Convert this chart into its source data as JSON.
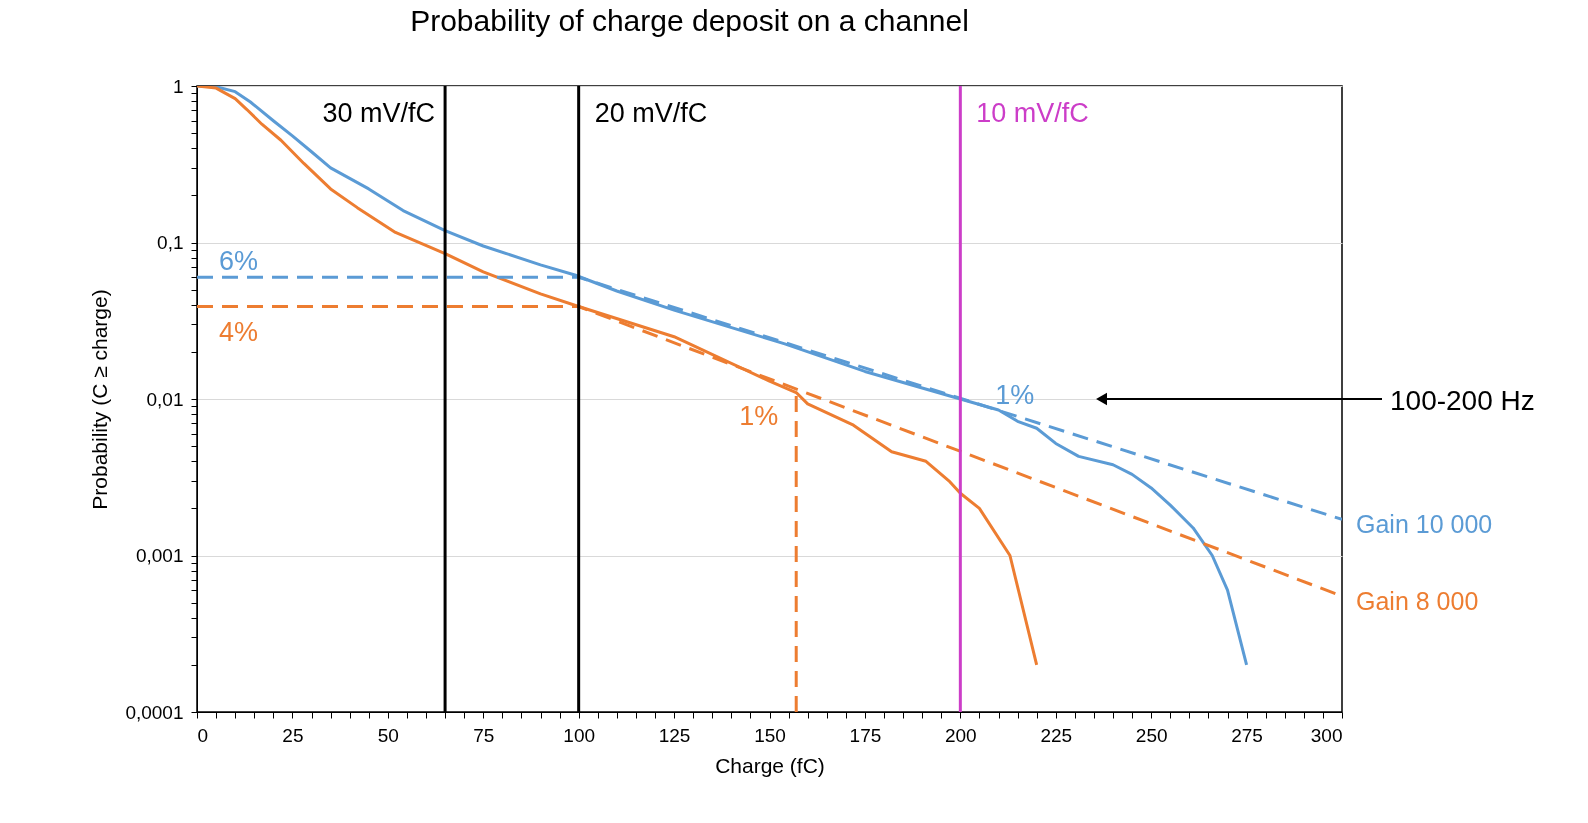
{
  "chart_data": {
    "type": "line",
    "title": "Probability of charge deposit on a channel",
    "xlabel": "Charge (fC)",
    "ylabel": "Probability (C ≥ charge)",
    "log": "y",
    "grid": "y",
    "legend": false,
    "xlim": [
      0,
      300
    ],
    "ylim": [
      0.0001,
      1
    ],
    "xticks": [
      0,
      {
        "value": 5,
        "label": null
      },
      {
        "value": 10,
        "label": null
      },
      {
        "value": 15,
        "label": null
      },
      {
        "value": 20,
        "label": null
      },
      25,
      {
        "value": 30,
        "label": null
      },
      {
        "value": 35,
        "label": null
      },
      {
        "value": 40,
        "label": null
      },
      {
        "value": 45,
        "label": null
      },
      50,
      {
        "value": 55,
        "label": null
      },
      {
        "value": 60,
        "label": null
      },
      {
        "value": 65,
        "label": null
      },
      {
        "value": 70,
        "label": null
      },
      75,
      {
        "value": 80,
        "label": null
      },
      {
        "value": 85,
        "label": null
      },
      {
        "value": 90,
        "label": null
      },
      {
        "value": 95,
        "label": null
      },
      100,
      {
        "value": 105,
        "label": null
      },
      {
        "value": 110,
        "label": null
      },
      {
        "value": 115,
        "label": null
      },
      {
        "value": 120,
        "label": null
      },
      125,
      {
        "value": 130,
        "label": null
      },
      {
        "value": 135,
        "label": null
      },
      {
        "value": 140,
        "label": null
      },
      {
        "value": 145,
        "label": null
      },
      150,
      {
        "value": 155,
        "label": null
      },
      {
        "value": 160,
        "label": null
      },
      {
        "value": 165,
        "label": null
      },
      {
        "value": 170,
        "label": null
      },
      175,
      {
        "value": 180,
        "label": null
      },
      {
        "value": 185,
        "label": null
      },
      {
        "value": 190,
        "label": null
      },
      {
        "value": 195,
        "label": null
      },
      200,
      {
        "value": 205,
        "label": null
      },
      {
        "value": 210,
        "label": null
      },
      {
        "value": 215,
        "label": null
      },
      {
        "value": 220,
        "label": null
      },
      225,
      {
        "value": 230,
        "label": null
      },
      {
        "value": 235,
        "label": null
      },
      {
        "value": 240,
        "label": null
      },
      {
        "value": 245,
        "label": null
      },
      250,
      {
        "value": 255,
        "label": null
      },
      {
        "value": 260,
        "label": null
      },
      {
        "value": 265,
        "label": null
      },
      {
        "value": 270,
        "label": null
      },
      275,
      {
        "value": 280,
        "label": null
      },
      {
        "value": 285,
        "label": null
      },
      {
        "value": 290,
        "label": null
      },
      {
        "value": 295,
        "label": null
      },
      300
    ],
    "yticks": [
      {
        "value": 0.0001,
        "label": "0,0001"
      },
      {
        "value": 0.0002,
        "label": null
      },
      {
        "value": 0.0003,
        "label": null
      },
      {
        "value": 0.0004,
        "label": null
      },
      {
        "value": 0.0005,
        "label": null
      },
      {
        "value": 0.0006,
        "label": null
      },
      {
        "value": 0.0007,
        "label": null
      },
      {
        "value": 0.0008,
        "label": null
      },
      {
        "value": 0.0009,
        "label": null
      },
      {
        "value": 0.001,
        "label": "0,001"
      },
      {
        "value": 0.002,
        "label": null
      },
      {
        "value": 0.003,
        "label": null
      },
      {
        "value": 0.004,
        "label": null
      },
      {
        "value": 0.005,
        "label": null
      },
      {
        "value": 0.006,
        "label": null
      },
      {
        "value": 0.007,
        "label": null
      },
      {
        "value": 0.008,
        "label": null
      },
      {
        "value": 0.009,
        "label": null
      },
      {
        "value": 0.01,
        "label": "0,01"
      },
      {
        "value": 0.02,
        "label": null
      },
      {
        "value": 0.03,
        "label": null
      },
      {
        "value": 0.04,
        "label": null
      },
      {
        "value": 0.05,
        "label": null
      },
      {
        "value": 0.06,
        "label": null
      },
      {
        "value": 0.07,
        "label": null
      },
      {
        "value": 0.08,
        "label": null
      },
      {
        "value": 0.09,
        "label": null
      },
      {
        "value": 0.1,
        "label": "0,1"
      },
      {
        "value": 0.2,
        "label": null
      },
      {
        "value": 0.3,
        "label": null
      },
      {
        "value": 0.4,
        "label": null
      },
      {
        "value": 0.5,
        "label": null
      },
      {
        "value": 0.6,
        "label": null
      },
      {
        "value": 0.7,
        "label": null
      },
      {
        "value": 0.8,
        "label": null
      },
      {
        "value": 0.9,
        "label": null
      },
      1
    ],
    "series": [
      {
        "color": "#5b9bd5",
        "line_style": "solid",
        "x": [
          0,
          5,
          10,
          14,
          20,
          25,
          30,
          35,
          45,
          54,
          65,
          75,
          90,
          99,
          110,
          125,
          154,
          175,
          200,
          210,
          215,
          220,
          225,
          231,
          240,
          245,
          250,
          255,
          261,
          266,
          270,
          275
        ],
        "values": [
          1,
          0.99,
          0.92,
          0.79,
          0.6,
          0.48,
          0.38,
          0.3,
          0.22,
          0.16,
          0.119,
          0.095,
          0.072,
          0.062,
          0.049,
          0.037,
          0.0225,
          0.015,
          0.01,
          0.0085,
          0.0072,
          0.0065,
          0.0052,
          0.0043,
          0.0038,
          0.0033,
          0.0027,
          0.0021,
          0.0015,
          0.001,
          0.0006,
          0.0002
        ]
      },
      {
        "color": "#ed7d31",
        "line_style": "solid",
        "x": [
          0,
          5,
          10,
          13,
          17,
          22,
          28,
          35,
          42,
          52,
          65,
          75,
          90,
          100,
          125,
          150,
          157,
          160,
          172,
          182,
          191,
          197,
          200,
          205,
          213,
          220
        ],
        "values": [
          1,
          0.97,
          0.83,
          0.71,
          0.57,
          0.45,
          0.32,
          0.22,
          0.167,
          0.116,
          0.085,
          0.065,
          0.047,
          0.039,
          0.025,
          0.013,
          0.011,
          0.0093,
          0.0068,
          0.0046,
          0.004,
          0.003,
          0.0025,
          0.002,
          0.001,
          0.0002
        ]
      },
      {
        "name": "Gain 10 000",
        "color": "#5b9bd5",
        "line_style": "dashed",
        "x": [
          0,
          100,
          300
        ],
        "values": [
          0.06,
          0.06,
          0.0017
        ]
      },
      {
        "name": "Gain 8 000",
        "color": "#ed7d31",
        "line_style": "dashed",
        "x": [
          0,
          100,
          300
        ],
        "values": [
          0.039,
          0.039,
          0.00055
        ]
      },
      {
        "color": "#ed7d31",
        "line_style": "dashed",
        "x": [
          157,
          157
        ],
        "values": [
          0.0001,
          0.011
        ]
      }
    ],
    "ref_lines": [
      {
        "axis": "x",
        "value": 65,
        "label": "30 mV/fC",
        "color": "#000000"
      },
      {
        "axis": "x",
        "value": 100,
        "label": "20 mV/fC",
        "color": "#000000"
      },
      {
        "axis": "x",
        "value": 200,
        "label": "10 mV/fC",
        "color": "#cc3dc8"
      }
    ],
    "annotations": [
      {
        "text": "6%",
        "x": 0,
        "y": 0.06
      },
      {
        "text": "4%",
        "x": 0,
        "y": 0.039
      },
      {
        "text": "1%",
        "x": 157,
        "y": 0.011
      },
      {
        "text": "1%",
        "x": 200,
        "y": 0.01
      },
      "100-200 Hz"
    ]
  }
}
